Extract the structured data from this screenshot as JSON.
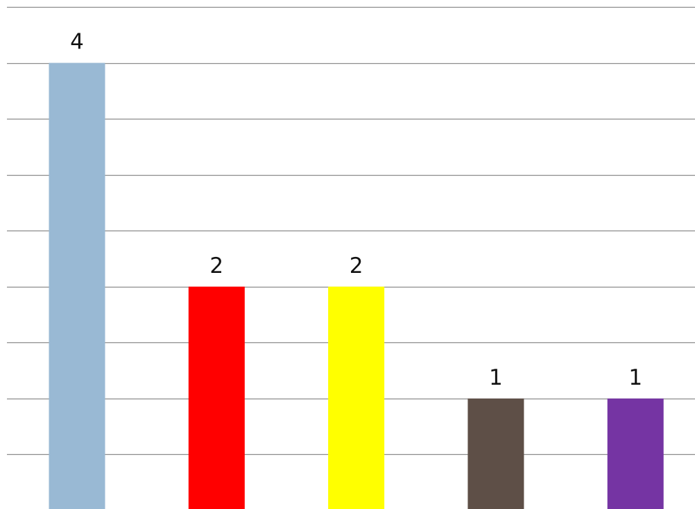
{
  "chart_data": {
    "type": "bar",
    "title": "",
    "xlabel": "",
    "ylabel": "",
    "categories": [
      "",
      "",
      "",
      "",
      ""
    ],
    "values": [
      4,
      2,
      2,
      1,
      1
    ],
    "data_labels": [
      "4",
      "2",
      "2",
      "1",
      "1"
    ],
    "bar_colors": [
      "#99b9d4",
      "#ff0000",
      "#ffff00",
      "#5e4f47",
      "#7534a3"
    ],
    "ylim": [
      0,
      4.5
    ],
    "grid_step": 0.5,
    "grid": true,
    "legend": "none",
    "axes_visible": false
  },
  "colors": {
    "background": "#ffffff",
    "gridline": "#8c8c8c",
    "label_text": "#111111"
  }
}
